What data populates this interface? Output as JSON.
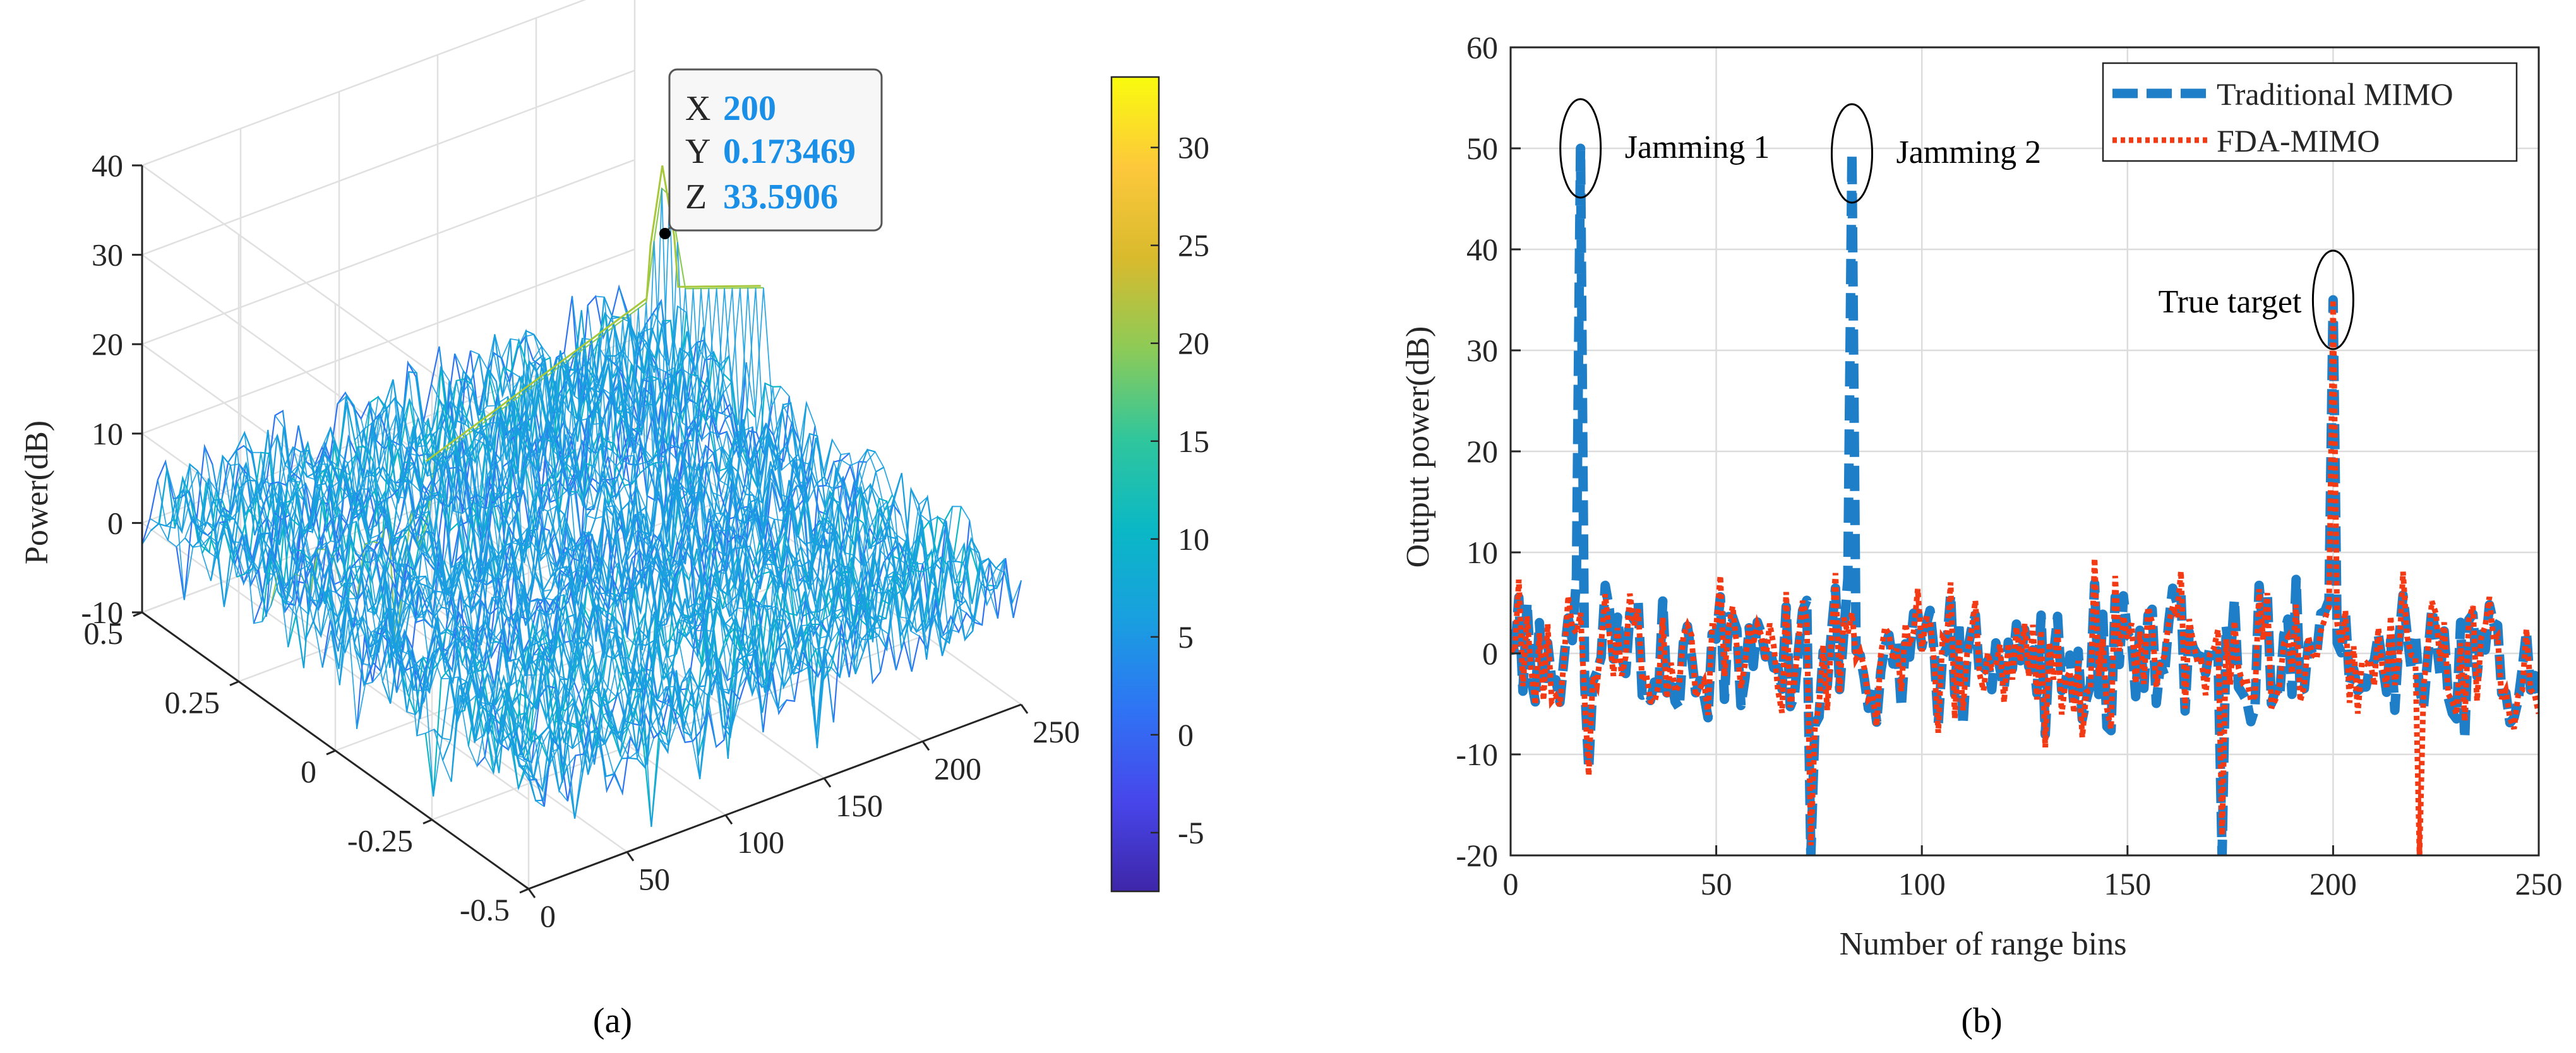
{
  "figure": {
    "caption_a": "(a)",
    "caption_b": "(b)"
  },
  "colors": {
    "background": "#ffffff",
    "axis": "#262626",
    "grid": "#dcdcdc",
    "traditional_mimo": "#1f7ec8",
    "fda_mimo": "#f23a14",
    "datatip_value": "#1a8fe8"
  },
  "chart_data": [
    {
      "type": "surface",
      "id": "a",
      "zlabel": "Power(dB)",
      "x_range": [
        0,
        250
      ],
      "y_range": [
        -0.5,
        0.5
      ],
      "z_range": [
        -10,
        40
      ],
      "x_ticks": [
        "0",
        "50",
        "100",
        "150",
        "200",
        "250"
      ],
      "y_ticks": [
        "-0.5",
        "-0.25",
        "0",
        "0.25",
        "0.5"
      ],
      "z_ticks": [
        "-10",
        "0",
        "10",
        "20",
        "30",
        "40"
      ],
      "colorbar": {
        "range": [
          -8,
          33.6
        ],
        "ticks": [
          "-5",
          "0",
          "5",
          "10",
          "15",
          "20",
          "25",
          "30"
        ],
        "colormap": [
          "#3e26a8",
          "#4746eb",
          "#2f73f4",
          "#199fe0",
          "#0ab8c5",
          "#30c69c",
          "#8dcb57",
          "#d9ba2d",
          "#fdc83b",
          "#f9fb0e"
        ]
      },
      "surface_model": {
        "floor_dB": 2.5,
        "noise_amplitude_dB": 5,
        "peak": {
          "x": 200,
          "y": 0.173469,
          "z": 33.5906
        },
        "ridge": {
          "y": 0.173469,
          "x_start": 80,
          "x_end": 250,
          "level_dB": 20
        }
      },
      "datatip": {
        "x_label": "X",
        "x_value": "200",
        "y_label": "Y",
        "y_value": "0.173469",
        "z_label": "Z",
        "z_value": "33.5906"
      }
    },
    {
      "type": "line",
      "id": "b",
      "xlabel": "Number of range bins",
      "ylabel": "Output power(dB)",
      "xlim": [
        0,
        250
      ],
      "ylim": [
        -20,
        60
      ],
      "x_ticks": [
        "0",
        "50",
        "100",
        "150",
        "200",
        "250"
      ],
      "y_ticks": [
        "-20",
        "-10",
        "0",
        "10",
        "20",
        "30",
        "40",
        "50",
        "60"
      ],
      "grid": true,
      "legend_position": "top-right",
      "series": [
        {
          "name": "Traditional MIMO",
          "style": "dashed",
          "color": "#1f7ec8",
          "baseline_dB": 0,
          "noise_amplitude_dB": 6,
          "peaks": [
            {
              "x": 17,
              "y": 50
            },
            {
              "x": 83,
              "y": 49.5
            },
            {
              "x": 200,
              "y": 35
            }
          ],
          "dips": [
            {
              "x": 73,
              "y": -20
            },
            {
              "x": 173,
              "y": -20
            }
          ]
        },
        {
          "name": "FDA-MIMO",
          "style": "dotted",
          "color": "#f23a14",
          "baseline_dB": 0,
          "noise_amplitude_dB": 6,
          "peaks": [
            {
              "x": 200,
              "y": 35
            }
          ],
          "dips": [
            {
              "x": 73,
              "y": -19
            },
            {
              "x": 173,
              "y": -18
            },
            {
              "x": 221,
              "y": -20
            }
          ]
        }
      ],
      "annotations": [
        {
          "text": "Jamming 1",
          "x": 17,
          "y": 50
        },
        {
          "text": "Jamming 2",
          "x": 83,
          "y": 49.5
        },
        {
          "text": "True target",
          "x": 200,
          "y": 35
        }
      ]
    }
  ]
}
